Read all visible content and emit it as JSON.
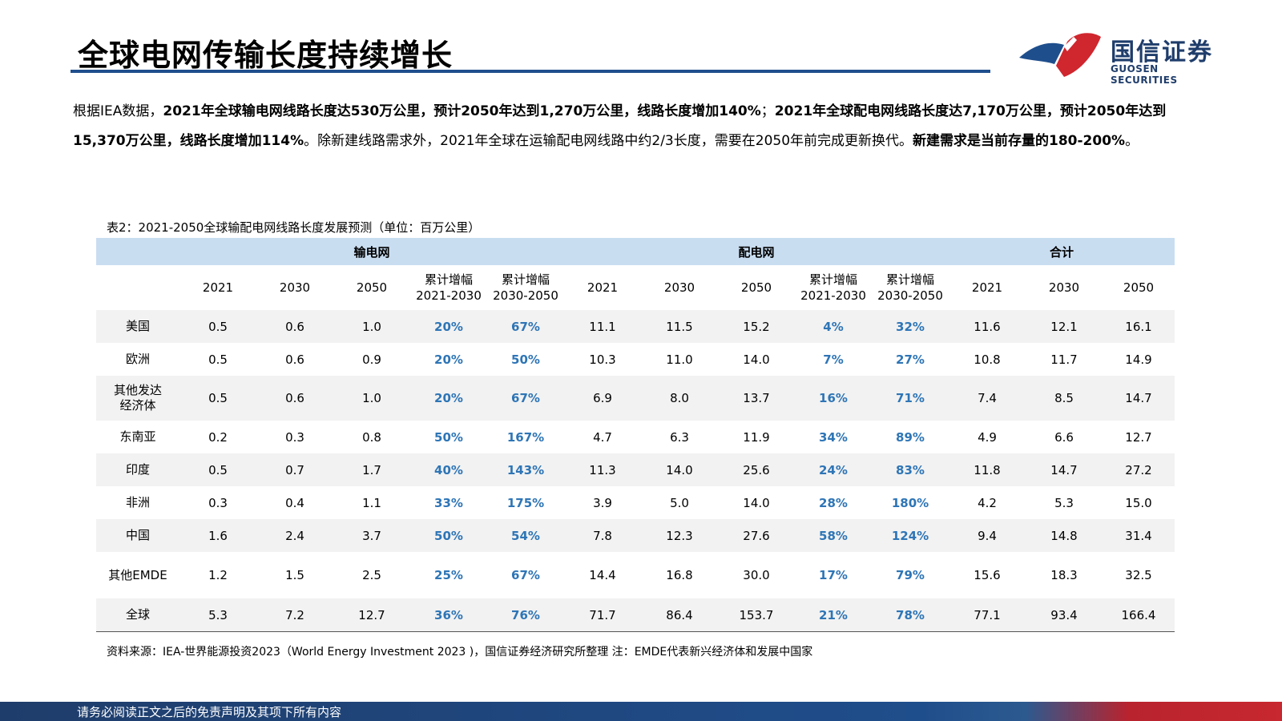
{
  "header": {
    "title": "全球电网传输长度持续增长",
    "logo_cn": "国信证券",
    "logo_en": "GUOSEN SECURITIES"
  },
  "intro": {
    "p1": "根据IEA数据，",
    "b1": "2021年全球输电网线路长度达530万公里，预计2050年达到1,270万公里，线路长度增加140%",
    "p2": "；",
    "b2": "2021年全球配电网线路长度达7,170万公里，预计2050年达到15,370万公里，线路长度增加114%",
    "p3": "。除新建线路需求外，2021年全球在运输配电网线路中约2/3长度，需要在2050年前完成更新换代。",
    "b3": "新建需求是当前存量的180-200%",
    "p4": "。"
  },
  "table": {
    "title": "表2：2021-2050全球输配电网线路长度发展预测（单位：百万公里）",
    "groups": [
      "输电网",
      "配电网",
      "合计"
    ],
    "columns": [
      "2021",
      "2030",
      "2050",
      "累计增幅",
      "2021-2030",
      "累计增幅",
      "2030-2050",
      "2021",
      "2030",
      "2050",
      "累计增幅",
      "2021-2030",
      "累计增幅",
      "2030-2050",
      "2021",
      "2030",
      "2050"
    ],
    "rows": [
      {
        "label": "美国",
        "label2": "",
        "v": [
          "0.5",
          "0.6",
          "1.0",
          "20%",
          "67%",
          "11.1",
          "11.5",
          "15.2",
          "4%",
          "32%",
          "11.6",
          "12.1",
          "16.1"
        ]
      },
      {
        "label": "欧洲",
        "label2": "",
        "v": [
          "0.5",
          "0.6",
          "0.9",
          "20%",
          "50%",
          "10.3",
          "11.0",
          "14.0",
          "7%",
          "27%",
          "10.8",
          "11.7",
          "14.9"
        ]
      },
      {
        "label": "其他发达",
        "label2": "经济体",
        "v": [
          "0.5",
          "0.6",
          "1.0",
          "20%",
          "67%",
          "6.9",
          "8.0",
          "13.7",
          "16%",
          "71%",
          "7.4",
          "8.5",
          "14.7"
        ]
      },
      {
        "label": "东南亚",
        "label2": "",
        "v": [
          "0.2",
          "0.3",
          "0.8",
          "50%",
          "167%",
          "4.7",
          "6.3",
          "11.9",
          "34%",
          "89%",
          "4.9",
          "6.6",
          "12.7"
        ]
      },
      {
        "label": "印度",
        "label2": "",
        "v": [
          "0.5",
          "0.7",
          "1.7",
          "40%",
          "143%",
          "11.3",
          "14.0",
          "25.6",
          "24%",
          "83%",
          "11.8",
          "14.7",
          "27.2"
        ]
      },
      {
        "label": "非洲",
        "label2": "",
        "v": [
          "0.3",
          "0.4",
          "1.1",
          "33%",
          "175%",
          "3.9",
          "5.0",
          "14.0",
          "28%",
          "180%",
          "4.2",
          "5.3",
          "15.0"
        ]
      },
      {
        "label": "中国",
        "label2": "",
        "v": [
          "1.6",
          "2.4",
          "3.7",
          "50%",
          "54%",
          "7.8",
          "12.3",
          "27.6",
          "58%",
          "124%",
          "9.4",
          "14.8",
          "31.4"
        ]
      },
      {
        "label": "其他EMDE",
        "label2": "",
        "v": [
          "1.2",
          "1.5",
          "2.5",
          "25%",
          "67%",
          "14.4",
          "16.8",
          "30.0",
          "17%",
          "79%",
          "15.6",
          "18.3",
          "32.5"
        ]
      },
      {
        "label": "全球",
        "label2": "",
        "v": [
          "5.3",
          "7.2",
          "12.7",
          "36%",
          "76%",
          "71.7",
          "86.4",
          "153.7",
          "21%",
          "78%",
          "77.1",
          "93.4",
          "166.4"
        ]
      }
    ],
    "source": "资料来源：IEA-世界能源投资2023（World Energy Investment 2023 )，国信证券经济研究所整理  注：EMDE代表新兴经济体和发展中国家"
  },
  "footer": {
    "text": "请务必阅读正文之后的免责声明及其项下所有内容"
  },
  "colors": {
    "brand_blue": "#1f4e8c",
    "brand_red": "#c8282f",
    "header_band": "#c9ddf1",
    "pct_blue": "#2e75b6"
  }
}
